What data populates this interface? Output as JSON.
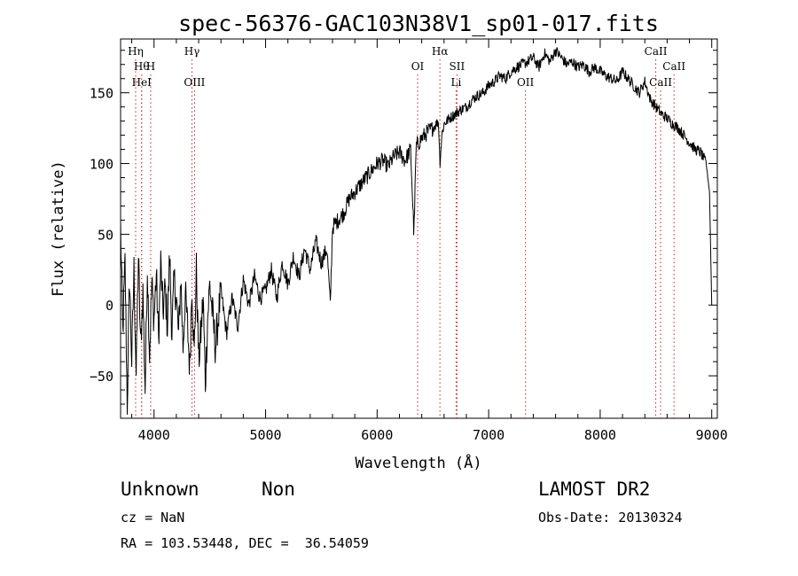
{
  "chart_data": {
    "type": "line",
    "title": "spec-56376-GAC103N38V1_sp01-017.fits",
    "xlabel": "Wavelength (Å)",
    "ylabel": "Flux (relative)",
    "xlim": [
      3700,
      9050
    ],
    "ylim": [
      -80,
      188
    ],
    "xticks": [
      4000,
      5000,
      6000,
      7000,
      8000,
      9000
    ],
    "yticks": [
      -50,
      0,
      50,
      100,
      150
    ],
    "grid": false,
    "series": [
      {
        "x": [
          3700,
          3720,
          3740,
          3760,
          3780,
          3800,
          3820,
          3840,
          3860,
          3880,
          3900,
          3920,
          3940,
          3960,
          3980,
          4000,
          4020,
          4040,
          4060,
          4080,
          4100,
          4120,
          4140,
          4160,
          4180,
          4200,
          4220,
          4240,
          4260,
          4280,
          4300,
          4320,
          4340,
          4360,
          4380,
          4400,
          4420,
          4440,
          4460,
          4480,
          4500,
          4550,
          4600,
          4650,
          4700,
          4750,
          4800,
          4850,
          4900,
          4950,
          5000,
          5050,
          5100,
          5150,
          5200,
          5250,
          5300,
          5350,
          5400,
          5450,
          5500,
          5550,
          5580,
          5600,
          5650,
          5700,
          5750,
          5800,
          5850,
          5900,
          5950,
          6000,
          6050,
          6100,
          6150,
          6200,
          6250,
          6300,
          6330,
          6350,
          6400,
          6450,
          6500,
          6550,
          6563,
          6580,
          6600,
          6650,
          6700,
          6750,
          6800,
          6850,
          6900,
          6950,
          7000,
          7050,
          7100,
          7150,
          7200,
          7250,
          7300,
          7350,
          7400,
          7450,
          7500,
          7550,
          7600,
          7650,
          7700,
          7750,
          7800,
          7850,
          7900,
          7950,
          8000,
          8050,
          8100,
          8150,
          8200,
          8250,
          8300,
          8350,
          8400,
          8450,
          8500,
          8550,
          8600,
          8650,
          8700,
          8750,
          8800,
          8850,
          8900,
          8950,
          8980,
          9000
        ],
        "y": [
          55,
          -20,
          30,
          -70,
          20,
          -40,
          25,
          -50,
          35,
          -30,
          10,
          -60,
          28,
          -35,
          15,
          -10,
          22,
          -25,
          30,
          -5,
          12,
          -15,
          35,
          -20,
          18,
          5,
          -22,
          20,
          -30,
          8,
          -15,
          -45,
          15,
          -35,
          25,
          -40,
          -20,
          5,
          -55,
          -10,
          15,
          -30,
          10,
          -20,
          5,
          -15,
          18,
          0,
          20,
          5,
          10,
          25,
          5,
          30,
          15,
          35,
          20,
          40,
          25,
          45,
          30,
          40,
          0,
          55,
          60,
          65,
          75,
          80,
          85,
          90,
          95,
          100,
          102,
          98,
          105,
          108,
          102,
          110,
          50,
          112,
          118,
          122,
          125,
          130,
          100,
          120,
          128,
          132,
          135,
          138,
          140,
          145,
          148,
          150,
          155,
          158,
          162,
          160,
          165,
          168,
          170,
          172,
          175,
          168,
          178,
          172,
          180,
          175,
          170,
          172,
          168,
          170,
          165,
          168,
          165,
          162,
          160,
          158,
          165,
          160,
          155,
          150,
          158,
          145,
          140,
          135,
          132,
          128,
          125,
          120,
          115,
          110,
          108,
          100,
          80,
          0
        ]
      }
    ],
    "lines": [
      {
        "label": "Hη",
        "x": 3835,
        "row": 0
      },
      {
        "label": "Hθ",
        "x": 3889,
        "row": 1
      },
      {
        "label": "H",
        "x": 3970,
        "row": 1
      },
      {
        "label": "HeI",
        "x": 3889,
        "row": 2
      },
      {
        "label": "Hγ",
        "x": 4340,
        "row": 0
      },
      {
        "label": "OIII",
        "x": 4363,
        "row": 2
      },
      {
        "label": "OI",
        "x": 6363,
        "row": 1
      },
      {
        "label": "Hα",
        "x": 6563,
        "row": 0
      },
      {
        "label": "SII",
        "x": 6716,
        "row": 1
      },
      {
        "label": "Li",
        "x": 6708,
        "row": 2
      },
      {
        "label": "OII",
        "x": 7330,
        "row": 2
      },
      {
        "label": "CaII",
        "x": 8498,
        "row": 0
      },
      {
        "label": "CaII",
        "x": 8662,
        "row": 1
      },
      {
        "label": "CaII",
        "x": 8542,
        "row": 2
      }
    ]
  },
  "info": {
    "class": "Unknown",
    "subclass": "Non",
    "cz": "cz = NaN",
    "coords": "RA = 103.53448, DEC =  36.54059",
    "survey": "LAMOST DR2",
    "obs_date": "Obs-Date: 20130324"
  }
}
